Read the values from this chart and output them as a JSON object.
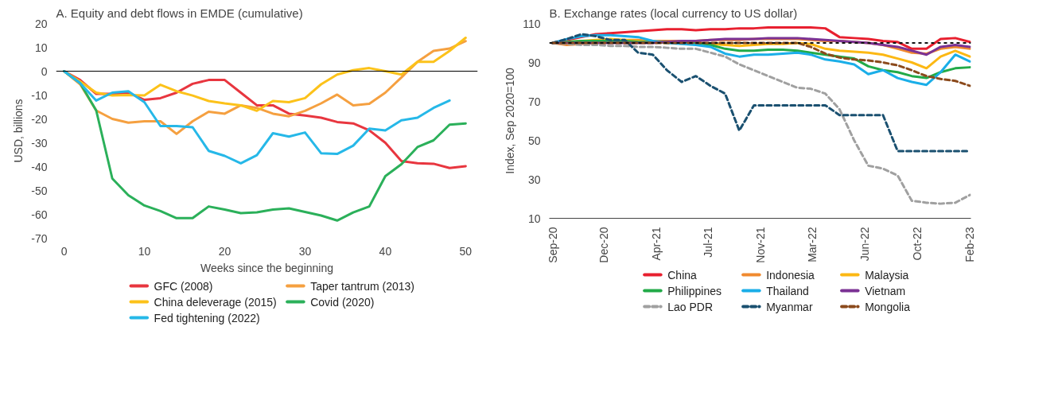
{
  "chart_data": [
    {
      "type": "line",
      "title": "A. Equity and debt flows in EMDE (cumulative)",
      "xlabel": "Weeks since the beginning",
      "ylabel": "USD, billions",
      "x": [
        0,
        2,
        4,
        6,
        8,
        10,
        12,
        14,
        16,
        18,
        20,
        22,
        24,
        26,
        28,
        30,
        32,
        34,
        36,
        38,
        40,
        42,
        44,
        46,
        48,
        50
      ],
      "xlim": [
        -1,
        51.5
      ],
      "xticks": [
        0,
        10,
        20,
        30,
        40,
        50
      ],
      "ylim": [
        -70,
        20
      ],
      "yticks": [
        20,
        10,
        0,
        -10,
        -20,
        -30,
        -40,
        -50,
        -60,
        -70
      ],
      "legend": "bottom",
      "ref_lines": [
        {
          "axis": "y",
          "value": 0,
          "color": "#000000",
          "line_style": "solid"
        }
      ],
      "series": [
        {
          "name": "GFC (2008)",
          "color": "#e8363f",
          "values": [
            0,
            -3.7,
            -9.5,
            -9.5,
            -9,
            -12,
            -11.3,
            -9,
            -5.3,
            -3.7,
            -3.7,
            -9,
            -14.3,
            -14.3,
            -17.8,
            -18.6,
            -19.5,
            -21.3,
            -21.9,
            -24.8,
            -30,
            -37.7,
            -38.6,
            -38.8,
            -40.6,
            -39.8
          ]
        },
        {
          "name": "Taper tantrum (2013)",
          "color": "#f5a040",
          "values": [
            0,
            -5.5,
            -16.5,
            -20,
            -21.6,
            -21,
            -21,
            -26.3,
            -21,
            -17,
            -17.8,
            -14.3,
            -15.4,
            -17.8,
            -18.9,
            -16.6,
            -13.5,
            -9.8,
            -14.3,
            -13.7,
            -9,
            -2.6,
            3.9,
            8.5,
            9.5,
            12.6
          ]
        },
        {
          "name": "China deleverage (2015)",
          "color": "#fcc21a",
          "values": [
            0,
            -4.3,
            -9,
            -10.2,
            -10,
            -10.2,
            -5.7,
            -8.4,
            -10.2,
            -12.5,
            -13.5,
            -14.3,
            -16.6,
            -12.5,
            -13,
            -11.3,
            -5.5,
            -1.4,
            0.4,
            1.3,
            0,
            -1.4,
            3.9,
            3.9,
            8.5,
            14
          ]
        },
        {
          "name": "Covid (2020)",
          "color": "#2bb05a",
          "values": [
            0,
            -5,
            -16.5,
            -45,
            -52,
            -56.3,
            -58.6,
            -61.6,
            -61.6,
            -56.7,
            -58,
            -59.5,
            -59.2,
            -58,
            -57.5,
            -59,
            -60.5,
            -62.6,
            -59.2,
            -56.7,
            -44,
            -39,
            -31.8,
            -29,
            -22.4,
            -21.9
          ]
        },
        {
          "name": "Fed tightening (2022)",
          "color": "#26b8e8",
          "values": [
            0,
            -5,
            -12.3,
            -9,
            -8.4,
            -13,
            -23,
            -23,
            -23.5,
            -33.4,
            -35.5,
            -38.6,
            -35.2,
            -26,
            -27.4,
            -25.7,
            -34.4,
            -34.7,
            -31.2,
            -24.1,
            -24.8,
            -20.6,
            -19.5,
            -15.4,
            -12.3,
            null
          ]
        }
      ]
    },
    {
      "type": "line",
      "title": "B. Exchange rates (local currency to US dollar)",
      "ylabel": "Index, Sep 2020=100",
      "x": [
        "2020-09",
        "2020-10",
        "2020-11",
        "2020-12",
        "2021-01",
        "2021-02",
        "2021-03",
        "2021-04",
        "2021-05",
        "2021-06",
        "2021-07",
        "2021-08",
        "2021-09",
        "2021-10",
        "2021-11",
        "2021-12",
        "2022-01",
        "2022-02",
        "2022-03",
        "2022-04",
        "2022-05",
        "2022-06",
        "2022-07",
        "2022-08",
        "2022-09",
        "2022-10",
        "2022-11",
        "2022-12",
        "2023-01",
        "2023-02"
      ],
      "xlim": [
        "2020-08-25",
        "2023-02-03"
      ],
      "xticks": [
        {
          "value": "2020-09-01",
          "label": "Sep-20"
        },
        {
          "value": "2020-12-19",
          "label": "Dec-20"
        },
        {
          "value": "2021-04-08",
          "label": "Apr-21"
        },
        {
          "value": "2021-07-27",
          "label": "Jul-21"
        },
        {
          "value": "2021-11-15",
          "label": "Nov-21"
        },
        {
          "value": "2022-03-05",
          "label": "Mar-22"
        },
        {
          "value": "2022-06-23",
          "label": "Jun-22"
        },
        {
          "value": "2022-10-12",
          "label": "Oct-22"
        },
        {
          "value": "2023-02-01",
          "label": "Feb-23"
        }
      ],
      "ylim": [
        10,
        110
      ],
      "yticks": [
        10,
        30,
        50,
        70,
        90,
        110
      ],
      "legend": "bottom",
      "ref_lines": [
        {
          "axis": "y",
          "value": 100,
          "color": "#111111",
          "line_style": "dotted"
        }
      ],
      "series": [
        {
          "name": "China",
          "color": "#e8202f",
          "values": [
            100,
            101.5,
            103,
            104.5,
            105,
            105.5,
            106,
            106.5,
            107,
            107,
            106.5,
            107,
            107,
            107.5,
            107.5,
            108,
            108,
            108,
            108,
            107.5,
            103,
            102.5,
            102,
            101,
            100.5,
            97,
            97,
            102,
            102.5,
            100.5
          ]
        },
        {
          "name": "Indonesia",
          "color": "#f08a30",
          "values": [
            100,
            99,
            99.5,
            100,
            101,
            101.5,
            101.5,
            101,
            101,
            101,
            101,
            101.5,
            101.5,
            101.5,
            102,
            102,
            102,
            102,
            101.5,
            101,
            101,
            100.5,
            100,
            99,
            97,
            95,
            94.5,
            97,
            98,
            97
          ]
        },
        {
          "name": "Malaysia",
          "color": "#fcb814",
          "values": [
            100,
            100.5,
            101,
            101.5,
            102,
            101.5,
            101,
            100.5,
            100,
            100,
            100,
            99.5,
            99,
            98.5,
            99,
            99.5,
            99.5,
            100,
            99.5,
            97,
            96,
            95.5,
            95,
            94,
            92,
            90,
            87,
            93,
            96,
            93
          ]
        },
        {
          "name": "Philippines",
          "color": "#22aa48",
          "values": [
            100,
            100.5,
            101,
            101,
            101,
            101,
            100.5,
            100.5,
            100.5,
            100.5,
            100,
            99,
            97,
            96,
            96,
            96.5,
            96.5,
            96,
            95,
            94,
            93,
            92,
            88,
            86,
            85,
            83,
            82,
            85,
            87,
            87.5
          ]
        },
        {
          "name": "Thailand",
          "color": "#1aaee8",
          "values": [
            100,
            102,
            103.5,
            104,
            104,
            103.5,
            103,
            101,
            100,
            99.5,
            99,
            98,
            94.5,
            93,
            94,
            94,
            94.5,
            95,
            94,
            91.5,
            90.5,
            89,
            84,
            86,
            82,
            80,
            78.5,
            85,
            94,
            90.5
          ]
        },
        {
          "name": "Vietnam",
          "color": "#7b3294",
          "values": [
            100,
            100,
            100,
            100,
            100,
            100,
            100,
            100,
            100.5,
            101,
            101,
            101.5,
            102,
            102,
            102,
            102.5,
            102.5,
            102.5,
            102,
            101.5,
            101,
            100.5,
            100,
            99,
            98,
            96,
            94,
            98,
            99,
            98
          ]
        },
        {
          "name": "Lao PDR",
          "color": "#a0a0a0",
          "line_style": "dashed",
          "values": [
            100,
            99.5,
            99,
            99,
            98.5,
            98.5,
            98,
            98,
            97.5,
            97,
            97,
            95,
            93,
            89,
            86,
            83,
            80,
            77,
            76.5,
            74,
            66,
            50,
            37,
            35.5,
            32,
            19,
            18,
            17.5,
            18,
            22
          ]
        },
        {
          "name": "Myanmar",
          "color": "#1a5070",
          "line_style": "dashed",
          "values": [
            100,
            102,
            104.5,
            103.5,
            101.5,
            101.5,
            95,
            94,
            86,
            80,
            83,
            78,
            74,
            55,
            68,
            68,
            68,
            68,
            68,
            68,
            63,
            63,
            63,
            63,
            44.5,
            44.5,
            44.5,
            44.5,
            44.5,
            44.5
          ]
        },
        {
          "name": "Mongolia",
          "color": "#8b4a1c",
          "line_style": "dashed",
          "values": [
            100,
            100,
            100,
            100,
            100,
            100,
            100,
            100,
            100,
            100,
            100,
            100,
            100,
            100,
            100,
            100,
            100,
            100,
            98,
            94.5,
            92.5,
            91.5,
            91,
            90,
            88.5,
            86,
            83,
            81.5,
            80.5,
            78
          ]
        }
      ]
    }
  ]
}
